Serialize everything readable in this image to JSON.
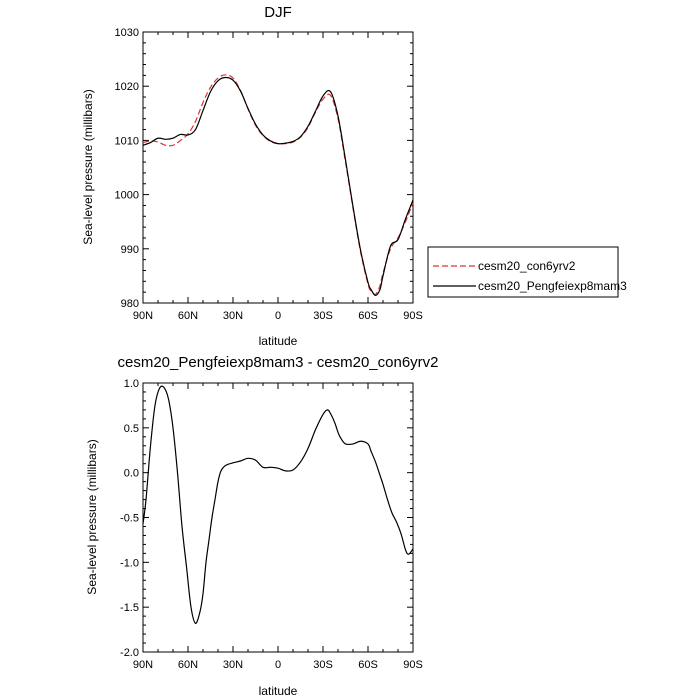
{
  "chart_data": [
    {
      "type": "line",
      "title": "DJF",
      "xlabel": "latitude",
      "ylabel": "Sea-level pressure (millibars)",
      "xlim": [
        90,
        -90
      ],
      "ylim": [
        980,
        1030
      ],
      "xticks": [
        {
          "value": 90,
          "label": "90N"
        },
        {
          "value": 60,
          "label": "60N"
        },
        {
          "value": 30,
          "label": "30N"
        },
        {
          "value": 0,
          "label": "0"
        },
        {
          "value": -30,
          "label": "30S"
        },
        {
          "value": -60,
          "label": "60S"
        },
        {
          "value": -90,
          "label": "90S"
        }
      ],
      "yticks": [
        {
          "value": 980,
          "label": "980"
        },
        {
          "value": 990,
          "label": "990"
        },
        {
          "value": 1000,
          "label": "1000"
        },
        {
          "value": 1010,
          "label": "1010"
        },
        {
          "value": 1020,
          "label": "1020"
        },
        {
          "value": 1030,
          "label": "1030"
        }
      ],
      "legend_position": "right",
      "series": [
        {
          "name": "cesm20_con6yrv2",
          "color": "#e03030",
          "dash": "dashed",
          "x": [
            90,
            85,
            80,
            75,
            70,
            65,
            60,
            55,
            50,
            45,
            40,
            35,
            30,
            25,
            20,
            15,
            10,
            5,
            0,
            -5,
            -10,
            -15,
            -20,
            -25,
            -30,
            -35,
            -40,
            -45,
            -50,
            -55,
            -60,
            -62,
            -65,
            -68,
            -70,
            -75,
            -80,
            -85,
            -90
          ],
          "y": [
            1009.6,
            1009.9,
            1009.7,
            1009.1,
            1009.1,
            1010.0,
            1011.2,
            1013.5,
            1017.0,
            1019.8,
            1021.5,
            1022.1,
            1021.5,
            1019.2,
            1015.8,
            1012.8,
            1010.9,
            1009.8,
            1009.4,
            1009.4,
            1009.7,
            1010.6,
            1012.4,
            1015.2,
            1017.6,
            1018.3,
            1014.0,
            1006.0,
            997.5,
            989.5,
            983.5,
            982.2,
            981.6,
            983.2,
            985.5,
            990.0,
            992.0,
            995.0,
            998.5
          ]
        },
        {
          "name": "cesm20_Pengfeiexp8mam3",
          "color": "#000000",
          "dash": "solid",
          "x": [
            90,
            85,
            80,
            75,
            70,
            65,
            60,
            55,
            50,
            45,
            40,
            35,
            30,
            25,
            20,
            15,
            10,
            5,
            0,
            -5,
            -10,
            -15,
            -20,
            -25,
            -30,
            -35,
            -40,
            -45,
            -50,
            -55,
            -60,
            -62,
            -65,
            -68,
            -70,
            -75,
            -80,
            -85,
            -90
          ],
          "y": [
            1009.1,
            1009.6,
            1010.4,
            1010.2,
            1010.4,
            1011.1,
            1011.0,
            1012.0,
            1015.5,
            1019.0,
            1021.0,
            1021.6,
            1021.1,
            1019.1,
            1015.9,
            1013.0,
            1011.0,
            1009.9,
            1009.4,
            1009.5,
            1009.8,
            1010.7,
            1012.6,
            1015.4,
            1018.2,
            1019.0,
            1014.5,
            1006.4,
            997.8,
            989.8,
            983.8,
            982.5,
            981.4,
            982.5,
            985.0,
            990.5,
            991.7,
            995.5,
            999.0
          ]
        }
      ]
    },
    {
      "type": "line",
      "title": "cesm20_Pengfeiexp8mam3 - cesm20_con6yrv2",
      "xlabel": "latitude",
      "ylabel": "Sea-level pressure (millibars)",
      "xlim": [
        90,
        -90
      ],
      "ylim": [
        -2.0,
        1.0
      ],
      "xticks": [
        {
          "value": 90,
          "label": "90N"
        },
        {
          "value": 60,
          "label": "60N"
        },
        {
          "value": 30,
          "label": "30N"
        },
        {
          "value": 0,
          "label": "0"
        },
        {
          "value": -30,
          "label": "30S"
        },
        {
          "value": -60,
          "label": "60S"
        },
        {
          "value": -90,
          "label": "90S"
        }
      ],
      "yticks": [
        {
          "value": -2.0,
          "label": "-2.0"
        },
        {
          "value": -1.5,
          "label": "-1.5"
        },
        {
          "value": -1.0,
          "label": "-1.0"
        },
        {
          "value": -0.5,
          "label": "-0.5"
        },
        {
          "value": 0.0,
          "label": "0.0"
        },
        {
          "value": 0.5,
          "label": "0.5"
        },
        {
          "value": 1.0,
          "label": "1.0"
        }
      ],
      "series": [
        {
          "color": "#000000",
          "dash": "solid",
          "x": [
            90,
            88,
            85,
            82,
            79,
            76,
            73,
            70,
            67,
            64,
            61,
            58,
            55,
            52,
            50,
            48,
            46,
            44,
            42,
            40,
            38,
            35,
            30,
            25,
            20,
            15,
            10,
            5,
            0,
            -5,
            -10,
            -15,
            -20,
            -25,
            -30,
            -33,
            -35,
            -38,
            -40,
            -42,
            -45,
            -50,
            -55,
            -60,
            -62,
            -65,
            -68,
            -70,
            -73,
            -76,
            -79,
            -82,
            -85,
            -87,
            -90
          ],
          "y": [
            -0.57,
            -0.3,
            0.3,
            0.75,
            0.94,
            0.95,
            0.82,
            0.5,
            0.0,
            -0.6,
            -1.05,
            -1.5,
            -1.68,
            -1.55,
            -1.35,
            -1.0,
            -0.75,
            -0.5,
            -0.3,
            -0.1,
            0.02,
            0.08,
            0.11,
            0.13,
            0.16,
            0.14,
            0.06,
            0.06,
            0.05,
            0.02,
            0.03,
            0.12,
            0.27,
            0.48,
            0.65,
            0.7,
            0.66,
            0.55,
            0.45,
            0.38,
            0.32,
            0.32,
            0.35,
            0.32,
            0.24,
            0.12,
            -0.03,
            -0.13,
            -0.3,
            -0.45,
            -0.55,
            -0.68,
            -0.86,
            -0.91,
            -0.85
          ]
        }
      ]
    }
  ]
}
